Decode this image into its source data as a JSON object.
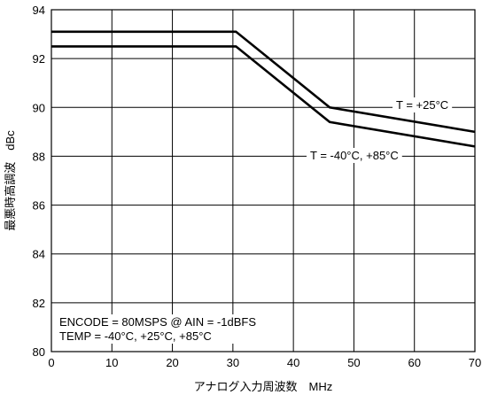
{
  "chart_data": {
    "type": "line",
    "title": "",
    "xlabel": "アナログ入力周波数　MHz",
    "ylabel": "最悪時高調波　dBc",
    "xlim": [
      0,
      70
    ],
    "ylim": [
      80,
      94
    ],
    "xticks": [
      0,
      10,
      20,
      30,
      40,
      50,
      60,
      70
    ],
    "yticks": [
      80,
      82,
      84,
      86,
      88,
      90,
      92,
      94
    ],
    "grid": true,
    "series": [
      {
        "name": "T = +25°C",
        "x": [
          0,
          30.5,
          46,
          70
        ],
        "y": [
          93.1,
          93.1,
          90.0,
          89.0
        ]
      },
      {
        "name": "T = -40°C, +85°C",
        "x": [
          0,
          30.5,
          46,
          70
        ],
        "y": [
          92.5,
          92.5,
          89.4,
          88.4
        ]
      }
    ],
    "annotations": [
      "ENCODE = 80MSPS @ AIN = -1dBFS",
      "TEMP = -40°C, +25°C, +85°C"
    ]
  }
}
